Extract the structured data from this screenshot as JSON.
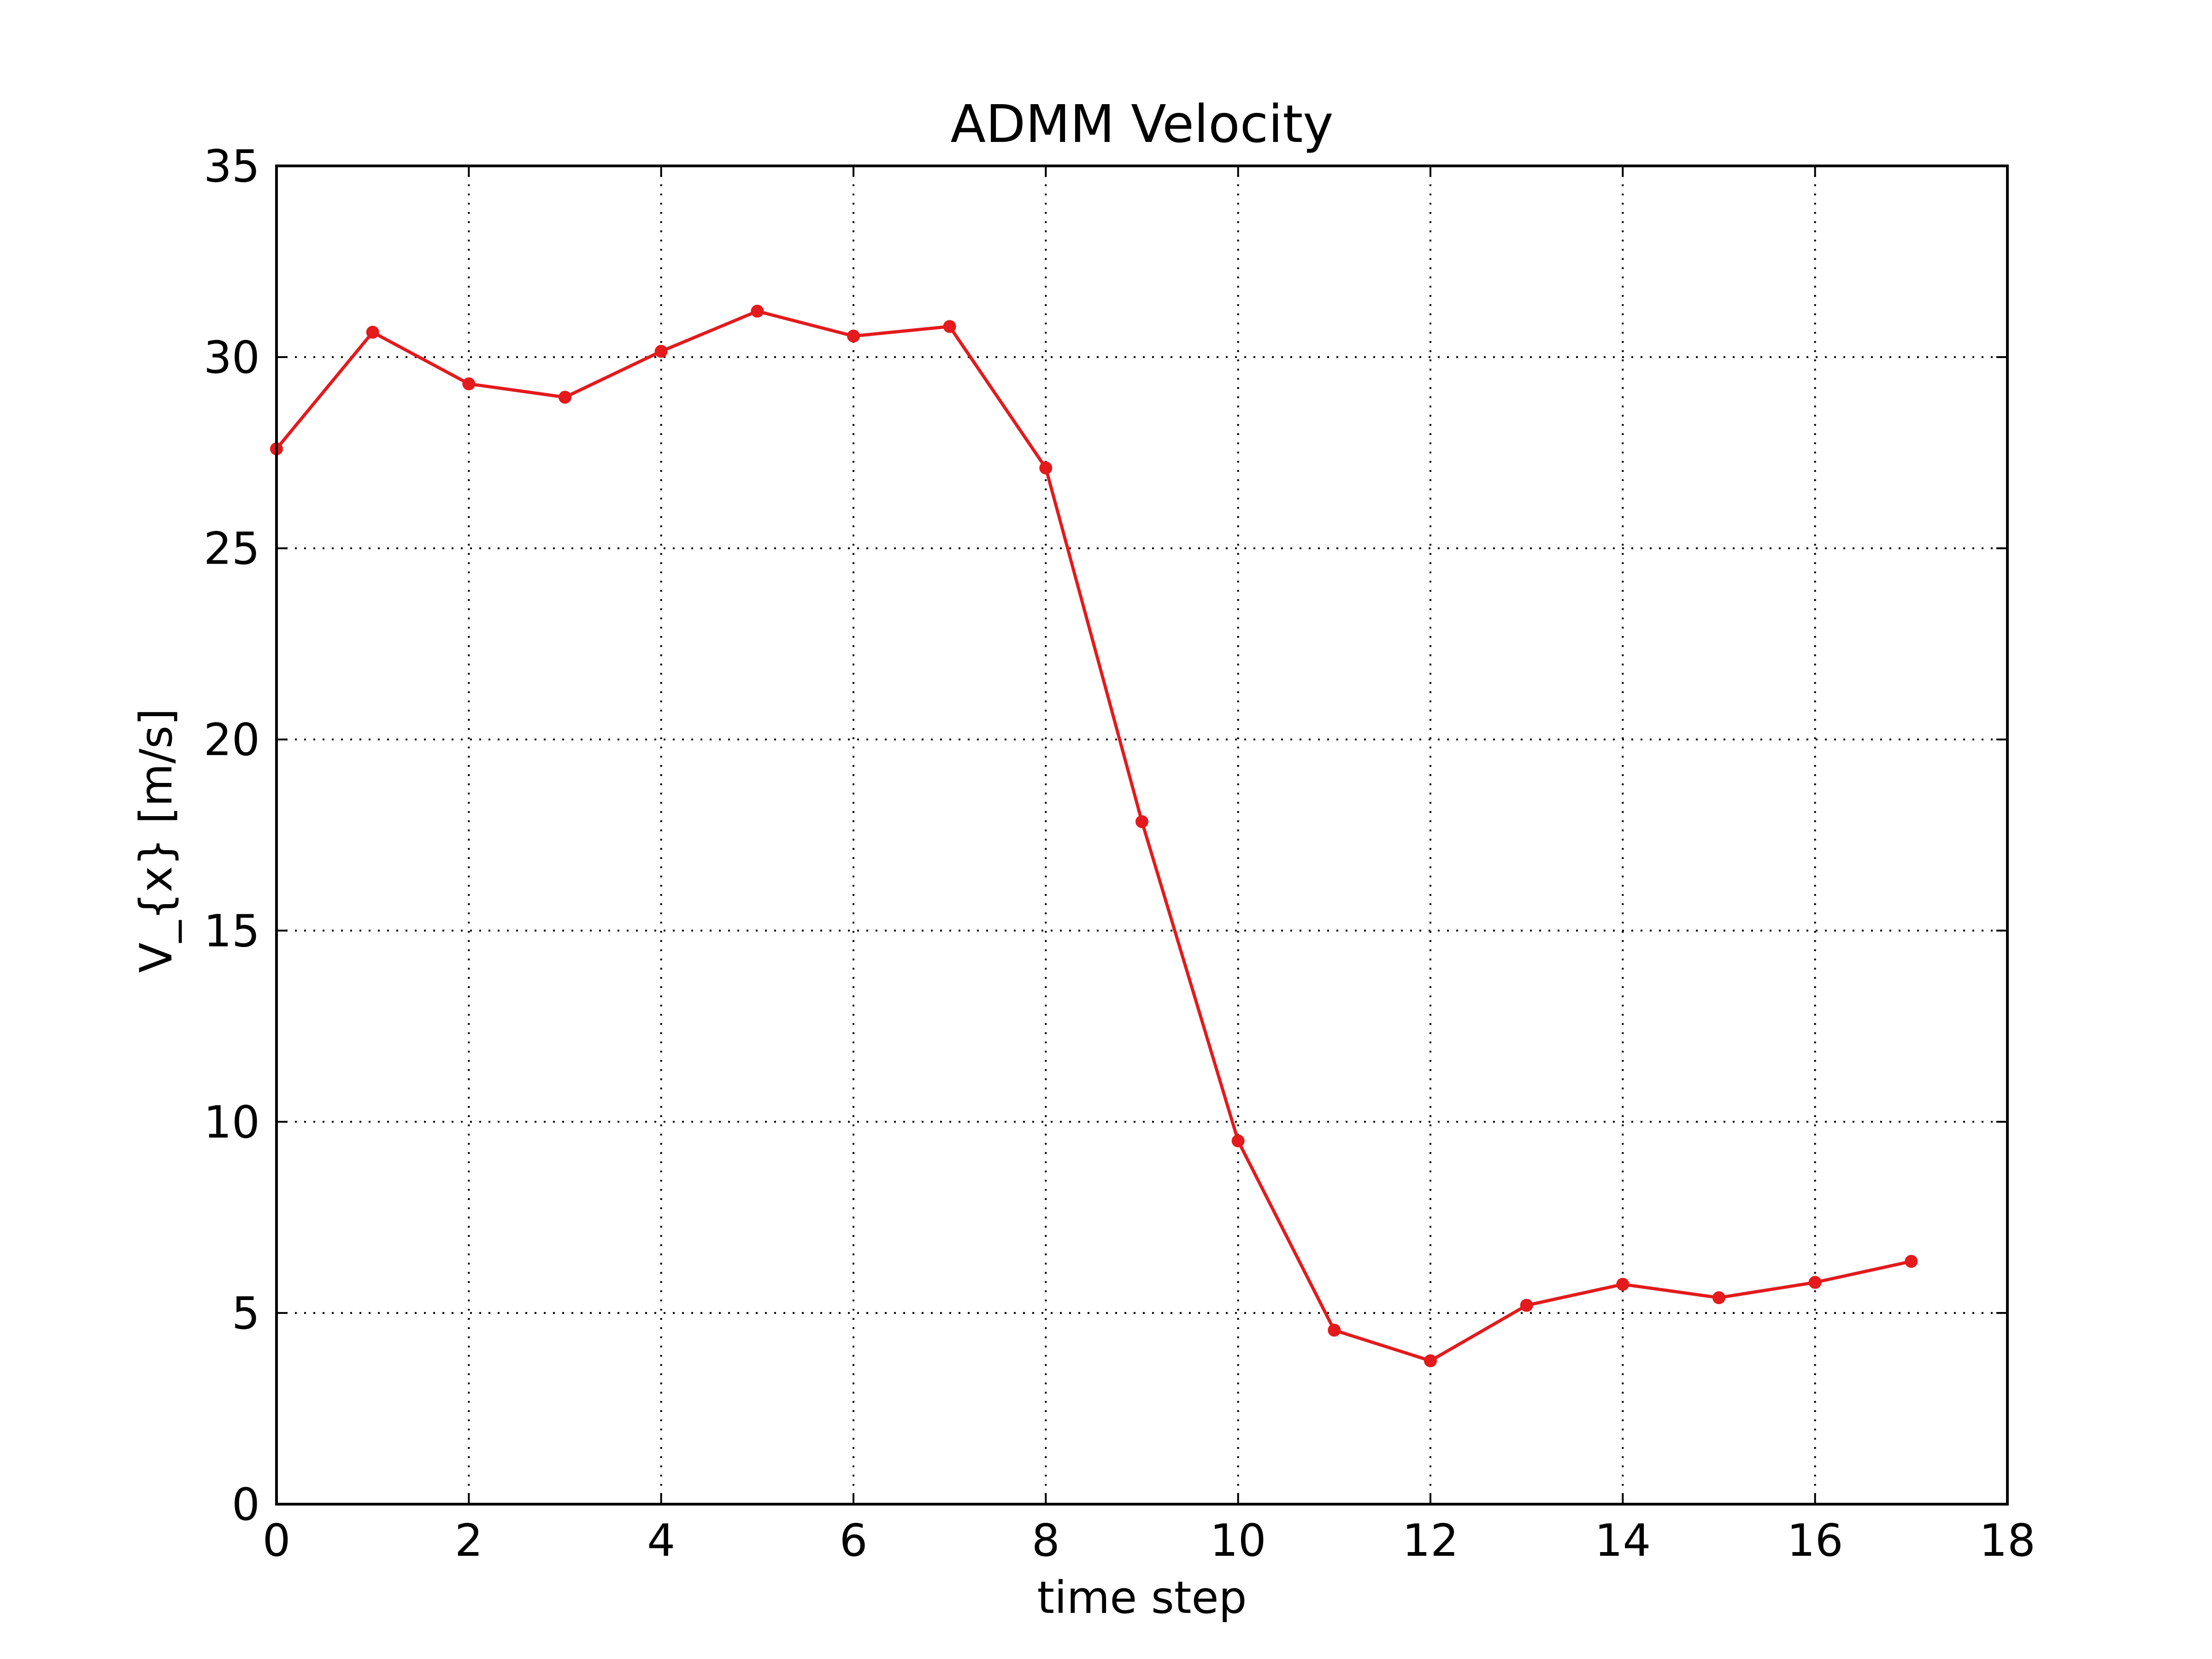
{
  "chart_data": {
    "type": "line",
    "title": "ADMM Velocity",
    "xlabel": "time step",
    "ylabel": "V_{x} [m/s]",
    "xlim": [
      0,
      18
    ],
    "ylim": [
      0,
      35
    ],
    "xticks": [
      0,
      2,
      4,
      6,
      8,
      10,
      12,
      14,
      16,
      18
    ],
    "yticks": [
      0,
      5,
      10,
      15,
      20,
      25,
      30,
      35
    ],
    "xtick_labels": [
      "0",
      "2",
      "4",
      "6",
      "8",
      "10",
      "12",
      "14",
      "16",
      "18"
    ],
    "ytick_labels": [
      "0",
      "5",
      "10",
      "15",
      "20",
      "25",
      "30",
      "35"
    ],
    "grid": true,
    "legend": "none",
    "series": [
      {
        "color": "#e41a1c",
        "marker": "circle",
        "x": [
          0,
          1,
          2,
          3,
          4,
          5,
          6,
          7,
          8,
          9,
          10,
          11,
          12,
          13,
          14,
          15,
          16,
          17
        ],
        "y": [
          27.6,
          30.65,
          29.3,
          28.95,
          30.15,
          31.2,
          30.55,
          30.8,
          27.1,
          17.85,
          9.5,
          4.55,
          3.75,
          5.2,
          5.75,
          5.4,
          5.8,
          6.35
        ]
      }
    ]
  }
}
